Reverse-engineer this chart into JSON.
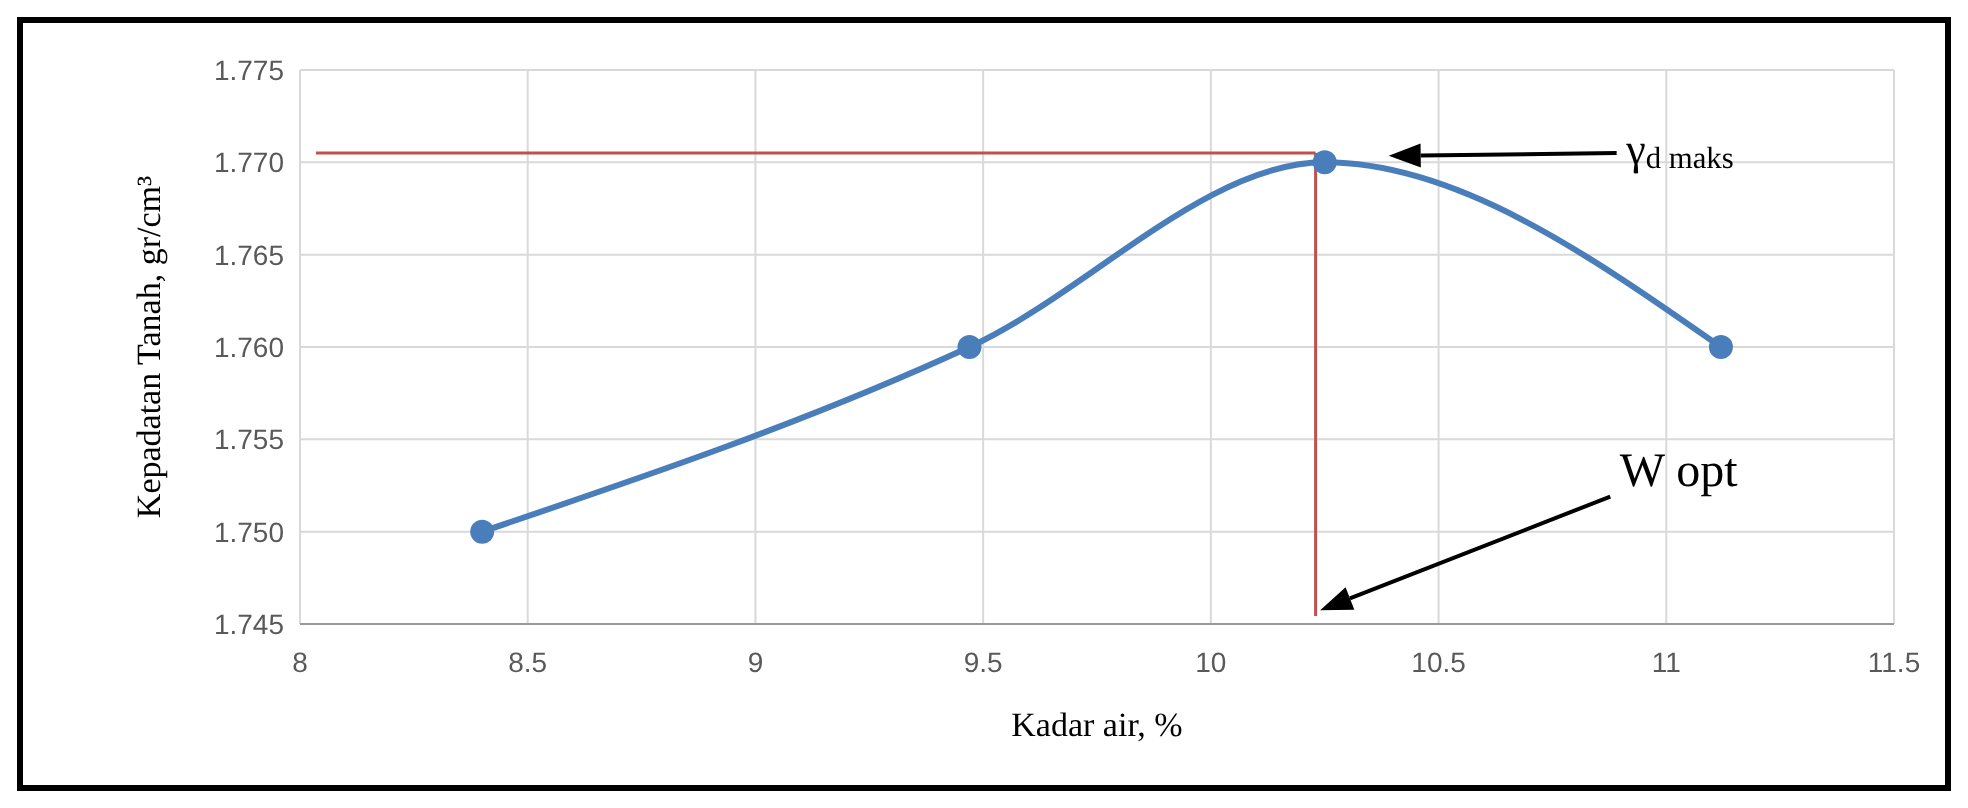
{
  "chart_data": {
    "type": "line",
    "xlabel": "Kadar air, %",
    "ylabel": "Kepadatan Tanah, gr/cm³",
    "x": [
      8.4,
      9.47,
      10.25,
      11.12
    ],
    "series": [
      {
        "color": "#4a7ebb",
        "values": [
          1.75,
          1.76,
          1.77,
          1.76
        ]
      }
    ],
    "xlim": [
      8,
      11.5
    ],
    "xticks": [
      8,
      8.5,
      9,
      9.5,
      10,
      10.5,
      11,
      11.5
    ],
    "ylim": [
      1.745,
      1.775
    ],
    "yticks": [
      {
        "value": 1.745,
        "label": "1.745"
      },
      {
        "value": 1.75,
        "label": "1.750"
      },
      {
        "value": 1.755,
        "label": "1.755"
      },
      {
        "value": 1.76,
        "label": "1.760"
      },
      {
        "value": 1.765,
        "label": "1.765"
      },
      {
        "value": 1.77,
        "label": "1.770"
      },
      {
        "value": 1.775,
        "label": "1.775"
      }
    ],
    "grid": true,
    "marker": "circle",
    "line_style": "solid",
    "ref_lines": [
      {
        "axis": "y",
        "value": 1.7705,
        "color": "#c0504d"
      },
      {
        "axis": "x",
        "value": 10.23,
        "color": "#c0504d"
      }
    ],
    "annotations": [
      "γ$_{d maks}$",
      "W opt"
    ]
  }
}
